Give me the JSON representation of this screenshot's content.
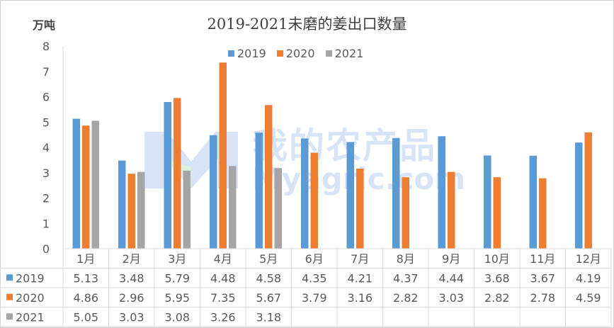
{
  "title": "2019-2021未磨的姜出口数量",
  "unit": "万吨",
  "watermark": {
    "cn": "我的农产品",
    "en": "Myagric.com"
  },
  "colors": {
    "2019": "#5b9bd5",
    "2020": "#ed7d31",
    "2021": "#a5a5a5"
  },
  "chart_data": {
    "type": "bar",
    "title": "2019-2021未磨的姜出口数量",
    "ylabel": "万吨",
    "xlabel": "",
    "ylim": [
      0,
      8
    ],
    "yticks": [
      "0",
      "1",
      "2",
      "3",
      "4",
      "5",
      "6",
      "7",
      "8"
    ],
    "legend": "top-center",
    "grid": false,
    "categories": [
      "1月",
      "2月",
      "3月",
      "4月",
      "5月",
      "6月",
      "7月",
      "8月",
      "9月",
      "10月",
      "11月",
      "12月"
    ],
    "series": [
      {
        "name": "2019",
        "values": [
          5.13,
          3.48,
          5.79,
          4.48,
          4.58,
          4.35,
          4.21,
          4.37,
          4.44,
          3.68,
          3.67,
          4.19
        ],
        "labels": [
          "5.13",
          "3.48",
          "5.79",
          "4.48",
          "4.58",
          "4.35",
          "4.21",
          "4.37",
          "4.44",
          "3.68",
          "3.67",
          "4.19"
        ]
      },
      {
        "name": "2020",
        "values": [
          4.86,
          2.96,
          5.95,
          7.35,
          5.67,
          3.79,
          3.16,
          2.82,
          3.03,
          2.82,
          2.78,
          4.59
        ],
        "labels": [
          "4.86",
          "2.96",
          "5.95",
          "7.35",
          "5.67",
          "3.79",
          "3.16",
          "2.82",
          "3.03",
          "2.82",
          "2.78",
          "4.59"
        ]
      },
      {
        "name": "2021",
        "values": [
          5.05,
          3.03,
          3.08,
          3.26,
          3.18,
          null,
          null,
          null,
          null,
          null,
          null,
          null
        ],
        "labels": [
          "5.05",
          "3.03",
          "3.08",
          "3.26",
          "3.18",
          "",
          "",
          "",
          "",
          "",
          "",
          ""
        ]
      }
    ]
  }
}
